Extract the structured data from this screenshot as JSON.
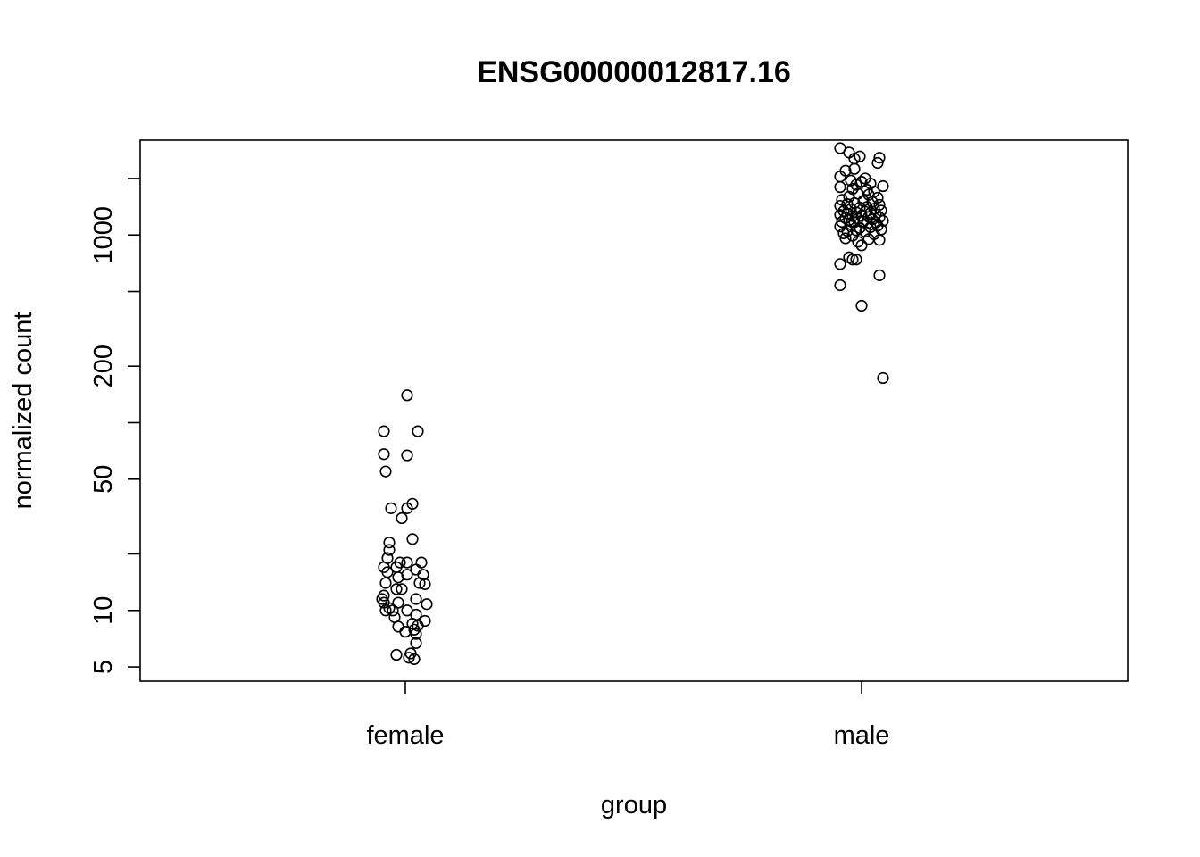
{
  "chart_data": {
    "type": "scatter",
    "title": "ENSG00000012817.16",
    "xlabel": "group",
    "ylabel": "normalized count",
    "y_scale": "log",
    "ylim": [
      4.2,
      3200
    ],
    "categories": [
      "female",
      "male"
    ],
    "y_ticks": [
      {
        "value": 5,
        "label": "5"
      },
      {
        "value": 10,
        "label": "10"
      },
      {
        "value": 20,
        "label": ""
      },
      {
        "value": 50,
        "label": "50"
      },
      {
        "value": 100,
        "label": ""
      },
      {
        "value": 200,
        "label": "200"
      },
      {
        "value": 500,
        "label": ""
      },
      {
        "value": 1000,
        "label": "1000"
      },
      {
        "value": 2000,
        "label": ""
      }
    ],
    "grid": false,
    "legend": "none",
    "series": [
      {
        "group": "female",
        "points": [
          {
            "dx": 0.01,
            "y": 140
          },
          {
            "dx": -0.12,
            "y": 90
          },
          {
            "dx": 0.07,
            "y": 90
          },
          {
            "dx": -0.12,
            "y": 68
          },
          {
            "dx": 0.01,
            "y": 67
          },
          {
            "dx": -0.11,
            "y": 55
          },
          {
            "dx": 0.04,
            "y": 37
          },
          {
            "dx": -0.08,
            "y": 35
          },
          {
            "dx": 0.01,
            "y": 35
          },
          {
            "dx": -0.02,
            "y": 31
          },
          {
            "dx": 0.04,
            "y": 24
          },
          {
            "dx": -0.09,
            "y": 23
          },
          {
            "dx": -0.09,
            "y": 21
          },
          {
            "dx": -0.1,
            "y": 19
          },
          {
            "dx": -0.03,
            "y": 18
          },
          {
            "dx": 0.01,
            "y": 18
          },
          {
            "dx": 0.09,
            "y": 18
          },
          {
            "dx": -0.12,
            "y": 17
          },
          {
            "dx": -0.05,
            "y": 17
          },
          {
            "dx": 0.06,
            "y": 16.5
          },
          {
            "dx": -0.1,
            "y": 16
          },
          {
            "dx": 0.01,
            "y": 15.5
          },
          {
            "dx": 0.1,
            "y": 15.5
          },
          {
            "dx": -0.04,
            "y": 15
          },
          {
            "dx": -0.11,
            "y": 14
          },
          {
            "dx": 0.08,
            "y": 14
          },
          {
            "dx": 0.11,
            "y": 13.8
          },
          {
            "dx": -0.05,
            "y": 13
          },
          {
            "dx": -0.02,
            "y": 13
          },
          {
            "dx": -0.12,
            "y": 12
          },
          {
            "dx": -0.13,
            "y": 11.5
          },
          {
            "dx": 0.06,
            "y": 11.5
          },
          {
            "dx": -0.04,
            "y": 11
          },
          {
            "dx": -0.12,
            "y": 11
          },
          {
            "dx": 0.12,
            "y": 10.8
          },
          {
            "dx": -0.09,
            "y": 10.3
          },
          {
            "dx": -0.11,
            "y": 10
          },
          {
            "dx": -0.07,
            "y": 10
          },
          {
            "dx": 0.01,
            "y": 10
          },
          {
            "dx": 0.06,
            "y": 9.5
          },
          {
            "dx": -0.06,
            "y": 9.2
          },
          {
            "dx": 0.11,
            "y": 8.8
          },
          {
            "dx": 0.04,
            "y": 8.5
          },
          {
            "dx": 0.07,
            "y": 8.3
          },
          {
            "dx": -0.04,
            "y": 8.2
          },
          {
            "dx": 0.05,
            "y": 7.9
          },
          {
            "dx": 0.0,
            "y": 7.7
          },
          {
            "dx": 0.06,
            "y": 7.5
          },
          {
            "dx": 0.06,
            "y": 6.7
          },
          {
            "dx": -0.05,
            "y": 5.8
          },
          {
            "dx": 0.03,
            "y": 5.9
          },
          {
            "dx": 0.02,
            "y": 5.6
          },
          {
            "dx": 0.05,
            "y": 5.5
          }
        ]
      },
      {
        "group": "male",
        "points": [
          {
            "dx": -0.12,
            "y": 2900
          },
          {
            "dx": -0.07,
            "y": 2750
          },
          {
            "dx": -0.01,
            "y": 2620
          },
          {
            "dx": -0.04,
            "y": 2550
          },
          {
            "dx": 0.1,
            "y": 2580
          },
          {
            "dx": 0.09,
            "y": 2420
          },
          {
            "dx": -0.04,
            "y": 2250
          },
          {
            "dx": -0.09,
            "y": 2200
          },
          {
            "dx": -0.12,
            "y": 2050
          },
          {
            "dx": 0.02,
            "y": 2000
          },
          {
            "dx": -0.06,
            "y": 1950
          },
          {
            "dx": 0.0,
            "y": 1920
          },
          {
            "dx": 0.05,
            "y": 1880
          },
          {
            "dx": -0.03,
            "y": 1850
          },
          {
            "dx": 0.12,
            "y": 1820
          },
          {
            "dx": -0.12,
            "y": 1800
          },
          {
            "dx": -0.05,
            "y": 1760
          },
          {
            "dx": 0.03,
            "y": 1740
          },
          {
            "dx": 0.07,
            "y": 1700
          },
          {
            "dx": -0.02,
            "y": 1660
          },
          {
            "dx": 0.04,
            "y": 1640
          },
          {
            "dx": -0.07,
            "y": 1600
          },
          {
            "dx": 0.09,
            "y": 1580
          },
          {
            "dx": -0.11,
            "y": 1540
          },
          {
            "dx": 0.01,
            "y": 1520
          },
          {
            "dx": 0.06,
            "y": 1500
          },
          {
            "dx": -0.04,
            "y": 1480
          },
          {
            "dx": -0.08,
            "y": 1460
          },
          {
            "dx": 0.1,
            "y": 1450
          },
          {
            "dx": -0.12,
            "y": 1430
          },
          {
            "dx": 0.03,
            "y": 1410
          },
          {
            "dx": -0.01,
            "y": 1400
          },
          {
            "dx": 0.07,
            "y": 1380
          },
          {
            "dx": -0.06,
            "y": 1370
          },
          {
            "dx": 0.11,
            "y": 1350
          },
          {
            "dx": -0.1,
            "y": 1340
          },
          {
            "dx": 0.02,
            "y": 1330
          },
          {
            "dx": -0.03,
            "y": 1320
          },
          {
            "dx": 0.05,
            "y": 1310
          },
          {
            "dx": -0.08,
            "y": 1300
          },
          {
            "dx": 0.08,
            "y": 1290
          },
          {
            "dx": -0.12,
            "y": 1280
          },
          {
            "dx": 0.0,
            "y": 1270
          },
          {
            "dx": -0.05,
            "y": 1260
          },
          {
            "dx": 0.04,
            "y": 1250
          },
          {
            "dx": 0.1,
            "y": 1240
          },
          {
            "dx": -0.09,
            "y": 1230
          },
          {
            "dx": -0.02,
            "y": 1220
          },
          {
            "dx": 0.06,
            "y": 1210
          },
          {
            "dx": -0.07,
            "y": 1200
          },
          {
            "dx": 0.12,
            "y": 1190
          },
          {
            "dx": 0.01,
            "y": 1180
          },
          {
            "dx": -0.11,
            "y": 1175
          },
          {
            "dx": -0.04,
            "y": 1170
          },
          {
            "dx": 0.08,
            "y": 1165
          },
          {
            "dx": 0.03,
            "y": 1150
          },
          {
            "dx": -0.06,
            "y": 1140
          },
          {
            "dx": 0.09,
            "y": 1120
          },
          {
            "dx": -0.12,
            "y": 1110
          },
          {
            "dx": 0.05,
            "y": 1100
          },
          {
            "dx": -0.01,
            "y": 1090
          },
          {
            "dx": 0.11,
            "y": 1070
          },
          {
            "dx": -0.03,
            "y": 1060
          },
          {
            "dx": -0.08,
            "y": 1050
          },
          {
            "dx": 0.02,
            "y": 1040
          },
          {
            "dx": -0.1,
            "y": 1020
          },
          {
            "dx": 0.07,
            "y": 1010
          },
          {
            "dx": -0.05,
            "y": 990
          },
          {
            "dx": -0.09,
            "y": 960
          },
          {
            "dx": 0.04,
            "y": 950
          },
          {
            "dx": 0.1,
            "y": 940
          },
          {
            "dx": -0.02,
            "y": 920
          },
          {
            "dx": 0.0,
            "y": 880
          },
          {
            "dx": -0.07,
            "y": 760
          },
          {
            "dx": -0.03,
            "y": 740
          },
          {
            "dx": -0.05,
            "y": 740
          },
          {
            "dx": -0.12,
            "y": 700
          },
          {
            "dx": 0.1,
            "y": 610
          },
          {
            "dx": -0.12,
            "y": 540
          },
          {
            "dx": 0.0,
            "y": 420
          },
          {
            "dx": 0.12,
            "y": 173
          }
        ]
      }
    ]
  }
}
